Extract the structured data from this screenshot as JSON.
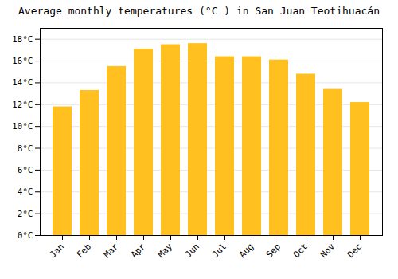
{
  "chart_data": {
    "type": "bar",
    "title": "Average monthly temperatures (°C ) in San Juan Teotihuacán",
    "categories": [
      "Jan",
      "Feb",
      "Mar",
      "Apr",
      "May",
      "Jun",
      "Jul",
      "Aug",
      "Sep",
      "Oct",
      "Nov",
      "Dec"
    ],
    "values": [
      11.8,
      13.3,
      15.5,
      17.1,
      17.5,
      17.6,
      16.4,
      16.4,
      16.1,
      14.8,
      13.4,
      12.2
    ],
    "color": "#FFC020",
    "ylim": [
      0,
      19
    ],
    "yticks": [
      {
        "value": 0,
        "label": "0°C"
      },
      {
        "value": 2,
        "label": "2°C"
      },
      {
        "value": 4,
        "label": "4°C"
      },
      {
        "value": 6,
        "label": "6°C"
      },
      {
        "value": 8,
        "label": "8°C"
      },
      {
        "value": 10,
        "label": "10°C"
      },
      {
        "value": 12,
        "label": "12°C"
      },
      {
        "value": 14,
        "label": "14°C"
      },
      {
        "value": 16,
        "label": "16°C"
      },
      {
        "value": 18,
        "label": "18°C"
      }
    ],
    "grid": true
  }
}
